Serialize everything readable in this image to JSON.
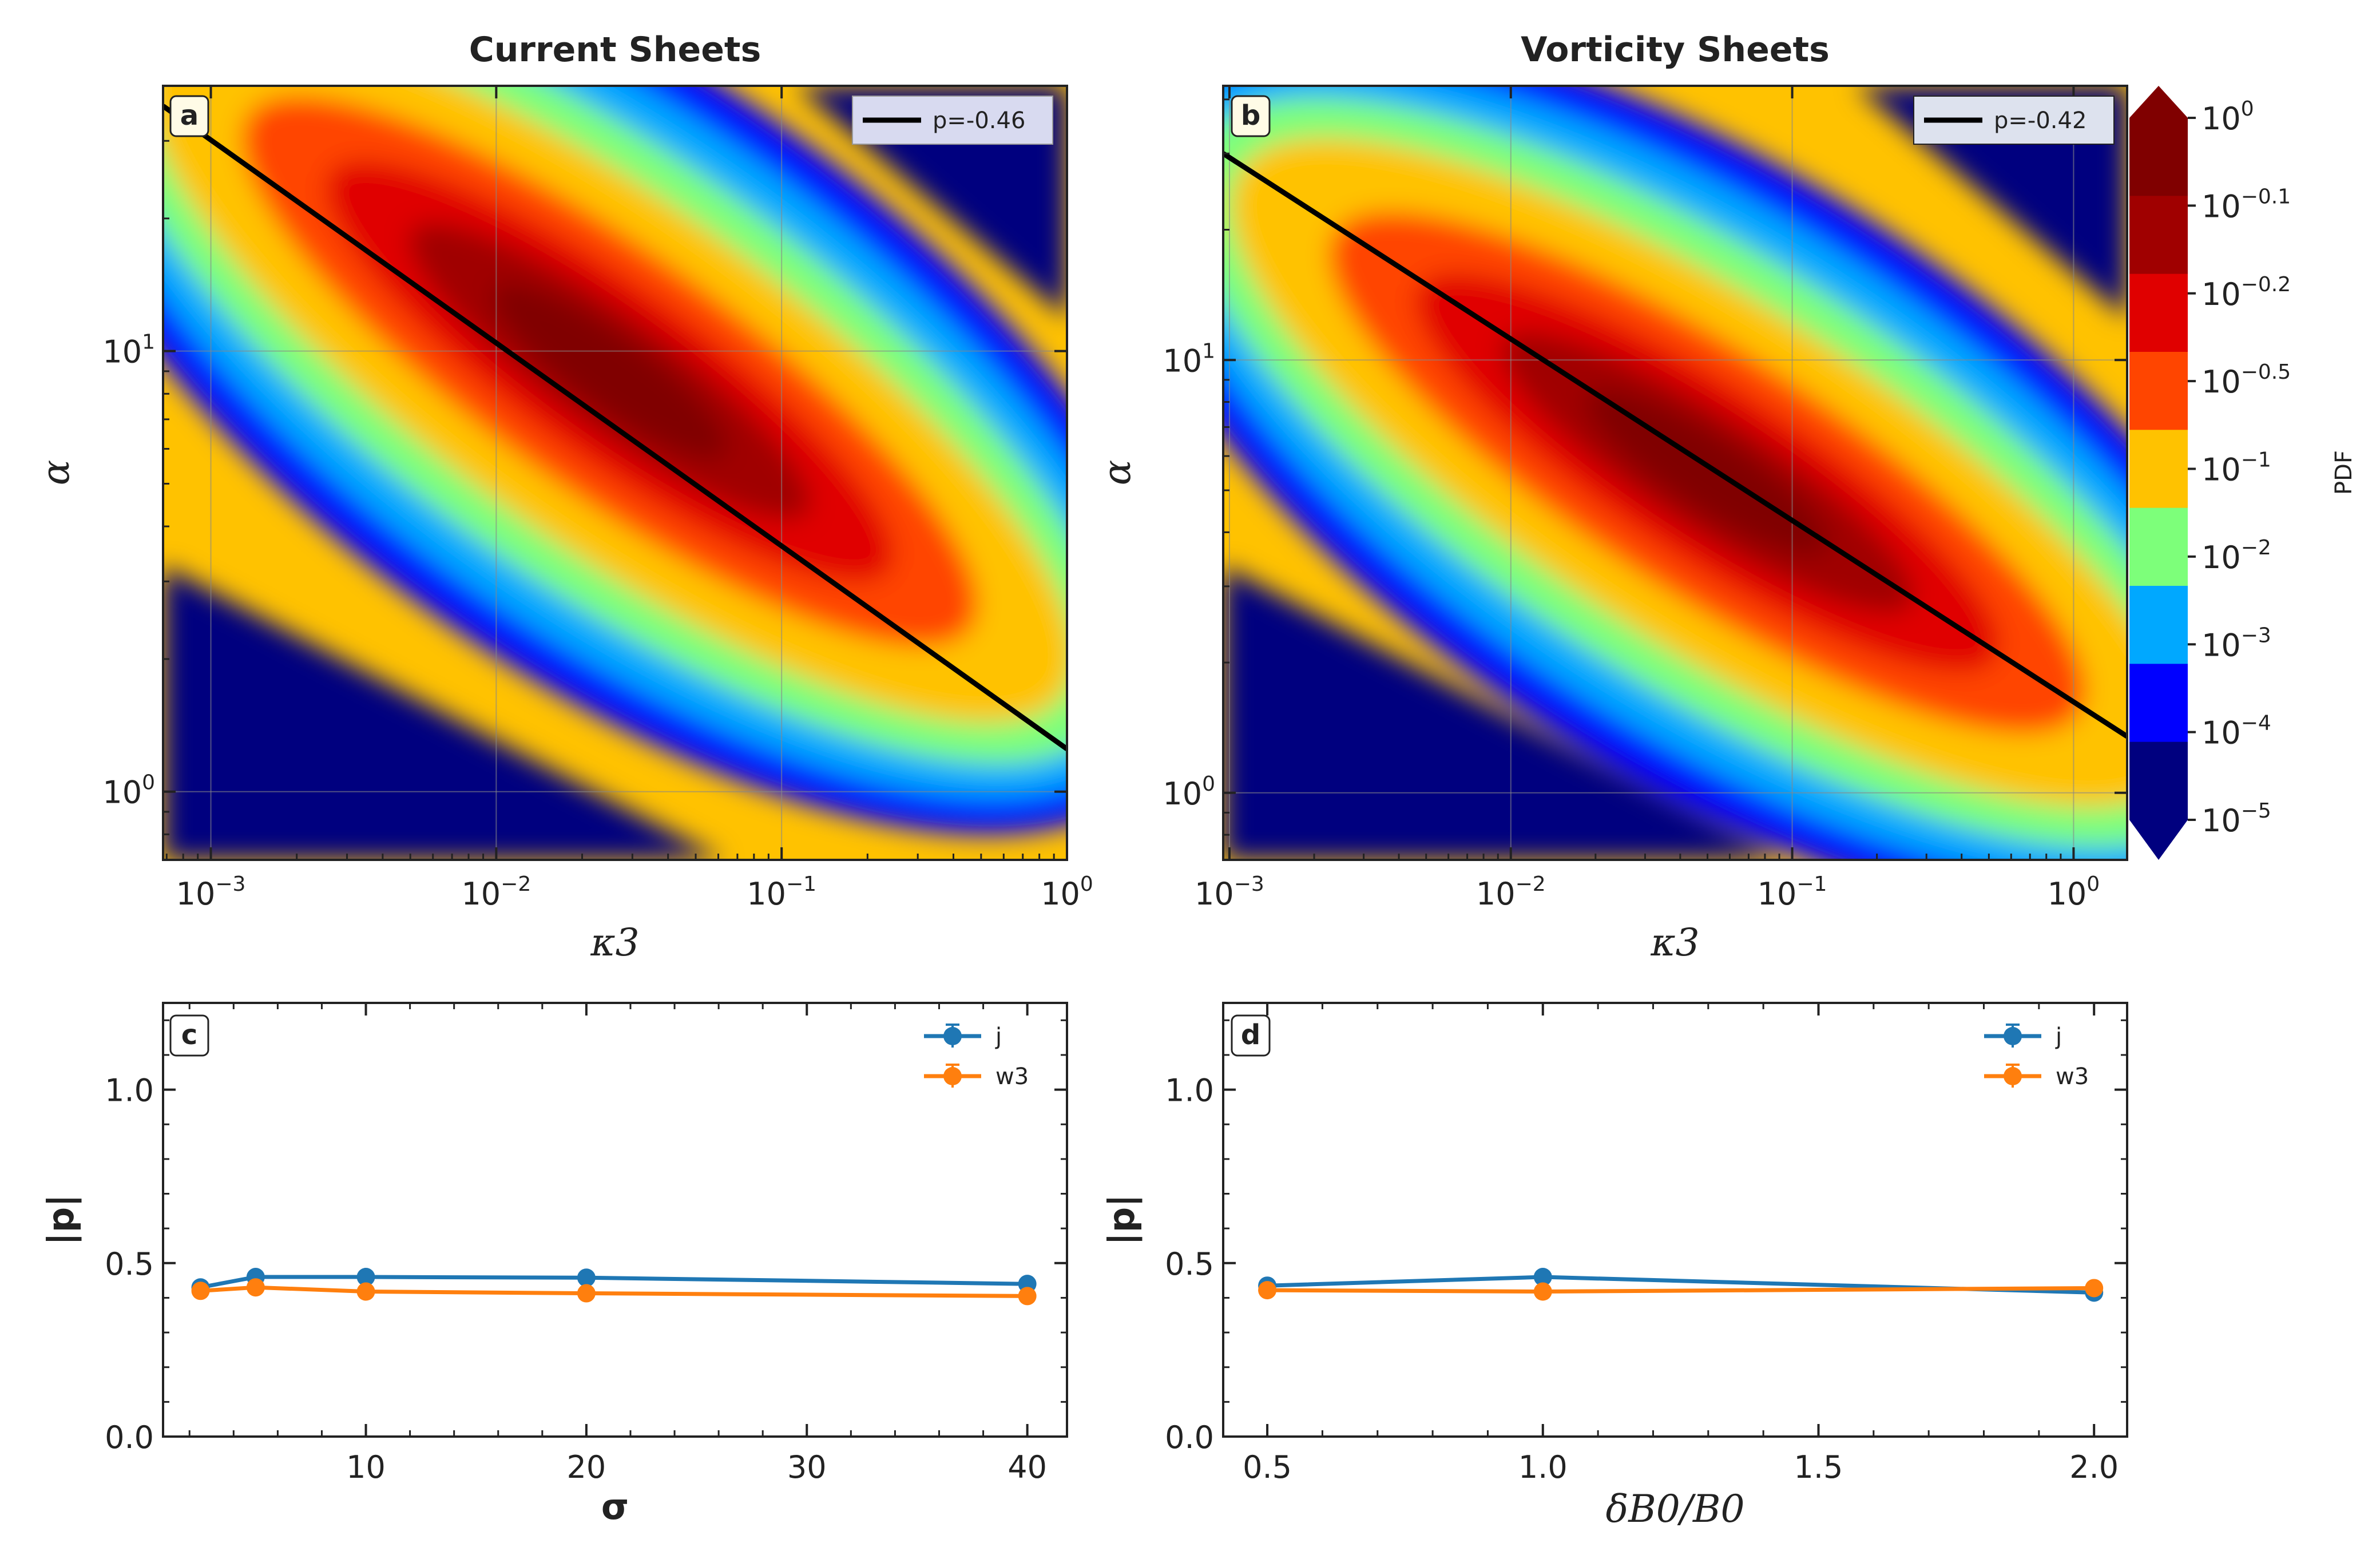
{
  "colors": {
    "levels": [
      "#00007f",
      "#0000ff",
      "#00a8ff",
      "#7dff7a",
      "#ffc200",
      "#ff4500",
      "#e00000",
      "#a00000",
      "#800000"
    ],
    "fit_line": "#000000",
    "series_j": "#1f77b4",
    "series_w3": "#ff7f0e"
  },
  "chart_data": [
    {
      "type": "contour",
      "panel": "a",
      "title": "Current Sheets",
      "xlabel": "κ3",
      "ylabel": "α",
      "xscale": "log",
      "yscale": "log",
      "xlim": [
        0.00068,
        1.0
      ],
      "ylim": [
        0.7,
        40
      ],
      "xticks": [
        {
          "value": 0.001,
          "base": "10",
          "exp": "−3"
        },
        {
          "value": 0.01,
          "base": "10",
          "exp": "−2"
        },
        {
          "value": 0.1,
          "base": "10",
          "exp": "−1"
        },
        {
          "value": 1.0,
          "base": "10",
          "exp": "0"
        }
      ],
      "yticks": [
        {
          "value": 1,
          "base": "10",
          "exp": "0"
        },
        {
          "value": 10,
          "base": "10",
          "exp": "1"
        }
      ],
      "fit_line": {
        "legend": "p=-0.46",
        "slope": -0.46,
        "x0": 0.00068,
        "y0": 36,
        "x1": 1.0,
        "y1": 1.25
      },
      "density_peak": {
        "x": 0.025,
        "y": 9
      },
      "grid": true
    },
    {
      "type": "contour",
      "panel": "b",
      "title": "Vorticity Sheets",
      "xlabel": "κ3",
      "ylabel": "α",
      "xscale": "log",
      "yscale": "log",
      "xlim": [
        0.00095,
        1.55
      ],
      "ylim": [
        0.7,
        43
      ],
      "xticks": [
        {
          "value": 0.001,
          "base": "10",
          "exp": "−3"
        },
        {
          "value": 0.01,
          "base": "10",
          "exp": "−2"
        },
        {
          "value": 0.1,
          "base": "10",
          "exp": "−1"
        },
        {
          "value": 1.0,
          "base": "10",
          "exp": "0"
        }
      ],
      "yticks": [
        {
          "value": 1,
          "base": "10",
          "exp": "0"
        },
        {
          "value": 10,
          "base": "10",
          "exp": "1"
        }
      ],
      "fit_line": {
        "legend": "p=-0.42",
        "slope": -0.42,
        "x0": 0.00095,
        "y0": 30,
        "x1": 1.55,
        "y1": 1.35
      },
      "density_peak": {
        "x": 0.05,
        "y": 5.5
      },
      "colorbar": {
        "label": "PDF",
        "ticks": [
          {
            "base": "10",
            "exp": "0"
          },
          {
            "base": "10",
            "exp": "−0.1"
          },
          {
            "base": "10",
            "exp": "−0.2"
          },
          {
            "base": "10",
            "exp": "−0.5"
          },
          {
            "base": "10",
            "exp": "−1"
          },
          {
            "base": "10",
            "exp": "−2"
          },
          {
            "base": "10",
            "exp": "−3"
          },
          {
            "base": "10",
            "exp": "−4"
          },
          {
            "base": "10",
            "exp": "−5"
          }
        ]
      },
      "grid": true
    },
    {
      "type": "line",
      "panel": "c",
      "xlabel": "σ",
      "ylabel": "|p|",
      "xlim": [
        0.8,
        41.8
      ],
      "ylim": [
        0,
        1.25
      ],
      "xticks": [
        10,
        20,
        30,
        40
      ],
      "yticks": [
        0.0,
        0.5,
        1.0
      ],
      "x": [
        2.5,
        5,
        10,
        20,
        40
      ],
      "series": [
        {
          "name": "j",
          "values": [
            0.43,
            0.46,
            0.46,
            0.458,
            0.44
          ]
        },
        {
          "name": "w3",
          "values": [
            0.42,
            0.43,
            0.418,
            0.413,
            0.405
          ]
        }
      ]
    },
    {
      "type": "line",
      "panel": "d",
      "xlabel": "δB0/B0",
      "ylabel": "|p|",
      "xlim": [
        0.42,
        2.06
      ],
      "ylim": [
        0,
        1.25
      ],
      "xticks": [
        0.5,
        1.0,
        1.5,
        2.0
      ],
      "yticks": [
        0.0,
        0.5,
        1.0
      ],
      "x": [
        0.5,
        1.0,
        2.0
      ],
      "series": [
        {
          "name": "j",
          "values": [
            0.435,
            0.46,
            0.415
          ]
        },
        {
          "name": "w3",
          "values": [
            0.422,
            0.418,
            0.428
          ]
        }
      ]
    }
  ]
}
